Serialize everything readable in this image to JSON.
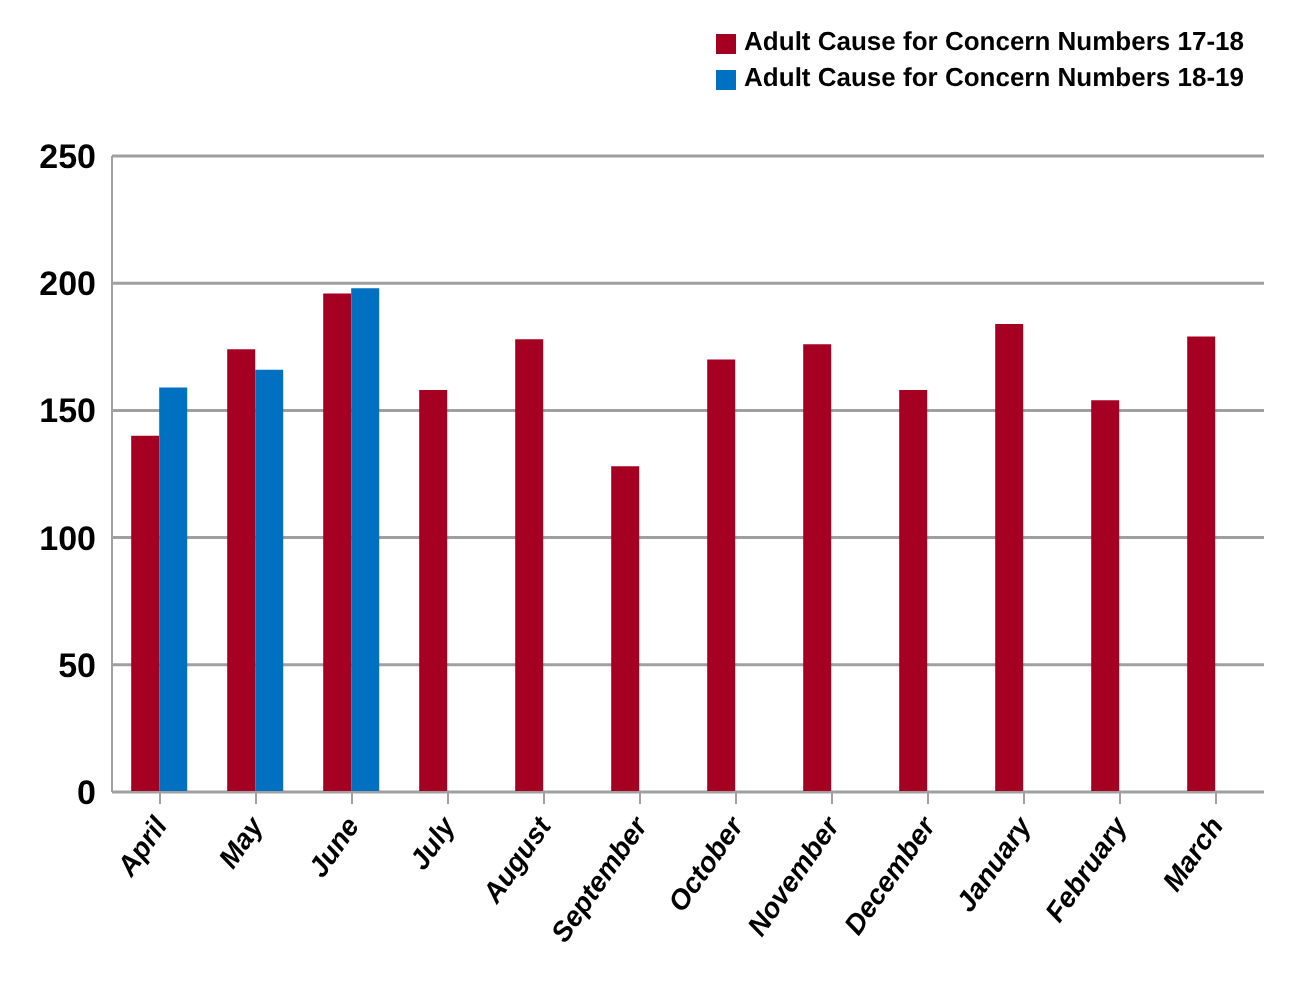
{
  "chart_data": {
    "type": "bar",
    "categories": [
      "April",
      "May",
      "June",
      "July",
      "August",
      "September",
      "October",
      "November",
      "December",
      "January",
      "February",
      "March"
    ],
    "series": [
      {
        "name": "Adult Cause for Concern Numbers 17-18",
        "color": "#a50021",
        "values": [
          140,
          174,
          196,
          158,
          178,
          128,
          170,
          176,
          158,
          184,
          154,
          179
        ]
      },
      {
        "name": "Adult Cause for Concern Numbers 18-19",
        "color": "#0070c0",
        "values": [
          159,
          166,
          198,
          null,
          null,
          null,
          null,
          null,
          null,
          null,
          null,
          null
        ]
      }
    ],
    "ylim": [
      0,
      250
    ],
    "yticks": [
      0,
      50,
      100,
      150,
      200,
      250
    ],
    "grid": "y",
    "legend": "top right"
  }
}
